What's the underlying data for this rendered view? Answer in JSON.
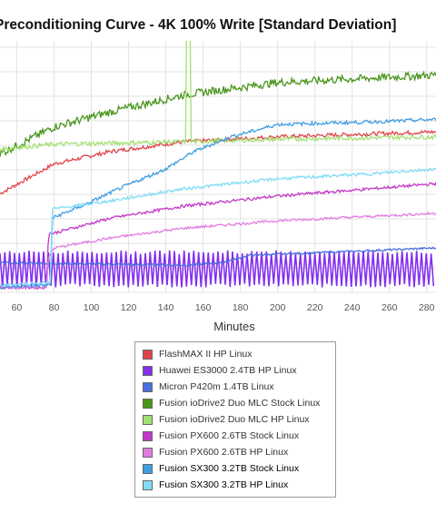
{
  "chart_data": {
    "type": "line",
    "title": "Preconditioning Curve - 4K 100% Write [Standard Deviation]",
    "xlabel": "Minutes",
    "xlim": [
      51,
      285
    ],
    "x_ticks": [
      60,
      80,
      100,
      120,
      140,
      160,
      180,
      200,
      220,
      240,
      260,
      280
    ],
    "ylim": [
      0,
      100
    ],
    "grid": true,
    "legend_position": "bottom-center",
    "series": [
      {
        "name": "FlashMAX II HP Linux",
        "color": "#e0434a",
        "points": [
          [
            51,
            40
          ],
          [
            80,
            52
          ],
          [
            110,
            57
          ],
          [
            150,
            61
          ],
          [
            200,
            63
          ],
          [
            285,
            65
          ]
        ]
      },
      {
        "name": "Huawei ES3000 2.4TB HP Linux",
        "color": "#8330ee",
        "style": "oscillating",
        "min": 2,
        "max": 17,
        "period": 2.6
      },
      {
        "name": "Micron P420m 1.4TB Linux",
        "color": "#4a6fe0",
        "points": [
          [
            51,
            12
          ],
          [
            150,
            11
          ],
          [
            170,
            12
          ],
          [
            185,
            15
          ],
          [
            220,
            16
          ],
          [
            285,
            18
          ]
        ]
      },
      {
        "name": "Fusion ioDrive2 Duo MLC Stock Linux",
        "color": "#4a961d",
        "points": [
          [
            51,
            56
          ],
          [
            80,
            67
          ],
          [
            110,
            73
          ],
          [
            150,
            80
          ],
          [
            200,
            85
          ],
          [
            285,
            88
          ]
        ]
      },
      {
        "name": "Fusion ioDrive2 Duo MLC HP Linux",
        "color": "#a2e072",
        "points": [
          [
            51,
            58
          ],
          [
            80,
            60
          ],
          [
            150,
            61
          ],
          [
            200,
            62
          ],
          [
            285,
            63
          ]
        ],
        "spike": {
          "x": 152,
          "y": 110
        }
      },
      {
        "name": "Fusion PX600 2.6TB Stock Linux",
        "color": "#c339c7",
        "points": [
          [
            51,
            2
          ],
          [
            76,
            2
          ],
          [
            77,
            24
          ],
          [
            80,
            24
          ],
          [
            110,
            30
          ],
          [
            150,
            35
          ],
          [
            200,
            39
          ],
          [
            285,
            44
          ]
        ]
      },
      {
        "name": "Fusion PX600 2.6TB HP Linux",
        "color": "#e27de0",
        "points": [
          [
            51,
            2
          ],
          [
            76,
            2
          ],
          [
            77,
            14
          ],
          [
            80,
            18
          ],
          [
            110,
            22
          ],
          [
            150,
            26
          ],
          [
            200,
            29
          ],
          [
            285,
            32
          ]
        ]
      },
      {
        "name": "Fusion SX300 3.2TB Stock Linux",
        "color": "#3f9ee0",
        "points": [
          [
            51,
            2
          ],
          [
            78,
            3
          ],
          [
            79,
            30
          ],
          [
            82,
            31
          ],
          [
            95,
            35
          ],
          [
            115,
            42
          ],
          [
            140,
            50
          ],
          [
            155,
            57
          ],
          [
            175,
            63
          ],
          [
            200,
            68
          ],
          [
            250,
            69
          ],
          [
            285,
            70
          ]
        ]
      },
      {
        "name": "Fusion SX300 3.2TB HP Linux",
        "color": "#7fdcf5",
        "points": [
          [
            51,
            3
          ],
          [
            78,
            4
          ],
          [
            79,
            34
          ],
          [
            82,
            34
          ],
          [
            110,
            37
          ],
          [
            150,
            42
          ],
          [
            200,
            46
          ],
          [
            250,
            48
          ],
          [
            285,
            50
          ]
        ]
      }
    ]
  }
}
